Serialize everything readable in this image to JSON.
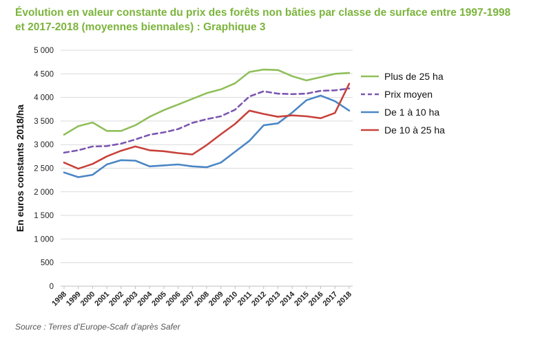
{
  "title": {
    "line1": "Évolution en valeur constante du prix des forêts non bâties par classe de surface entre 1997-1998",
    "line2": "et 2017-2018 (moyennes biennales) : Graphique 3"
  },
  "source": "Source : Terres d’Europe-Scafr d’après Safer",
  "colors": {
    "title": "#7bb43c",
    "grid": "#d9d9d9",
    "axis_text": "#222222",
    "plus25": "#8fbf5a",
    "moyen": "#7b56b0",
    "de1a10": "#4a86c5",
    "de10a25": "#c8413a"
  },
  "chart_data": {
    "type": "line",
    "ylabel": "En euros constants 2018/ha",
    "xlabel": "",
    "ylim": [
      0,
      5000
    ],
    "y_ticks": [
      0,
      500,
      1000,
      1500,
      2000,
      2500,
      3000,
      3500,
      4000,
      4500,
      5000
    ],
    "y_tick_labels": [
      "0",
      "500",
      "1 000",
      "1 500",
      "2 000",
      "2 500",
      "3 000",
      "3 500",
      "4 000",
      "4 500",
      "5 000"
    ],
    "grid": "horizontal",
    "legend_position": "right",
    "categories": [
      "1998",
      "1999",
      "2000",
      "2001",
      "2002",
      "2003",
      "2004",
      "2005",
      "2006",
      "2007",
      "2008",
      "2009",
      "2010",
      "2011",
      "2012",
      "2013",
      "2014",
      "2015",
      "2016",
      "2017",
      "2018"
    ],
    "series": [
      {
        "name": "Plus de 25 ha",
        "color_key": "plus25",
        "dash": false,
        "values": [
          3210,
          3390,
          3470,
          3290,
          3290,
          3410,
          3590,
          3730,
          3850,
          3970,
          4090,
          4170,
          4300,
          4540,
          4590,
          4580,
          4450,
          4360,
          4430,
          4500,
          4520
        ]
      },
      {
        "name": "Prix moyen",
        "color_key": "moyen",
        "dash": true,
        "values": [
          2830,
          2880,
          2960,
          2970,
          3020,
          3110,
          3210,
          3260,
          3330,
          3460,
          3540,
          3600,
          3740,
          4020,
          4130,
          4080,
          4070,
          4080,
          4140,
          4150,
          4190
        ]
      },
      {
        "name": "De 1 à 10 ha",
        "color_key": "de1a10",
        "dash": false,
        "values": [
          2410,
          2310,
          2360,
          2580,
          2670,
          2660,
          2540,
          2560,
          2580,
          2540,
          2520,
          2620,
          2850,
          3080,
          3410,
          3450,
          3680,
          3940,
          4040,
          3920,
          3720
        ]
      },
      {
        "name": "De 10 à 25 ha",
        "color_key": "de10a25",
        "dash": false,
        "values": [
          2620,
          2490,
          2590,
          2750,
          2870,
          2960,
          2880,
          2860,
          2820,
          2790,
          2990,
          3220,
          3440,
          3720,
          3650,
          3590,
          3620,
          3600,
          3560,
          3670,
          4290
        ]
      }
    ]
  }
}
